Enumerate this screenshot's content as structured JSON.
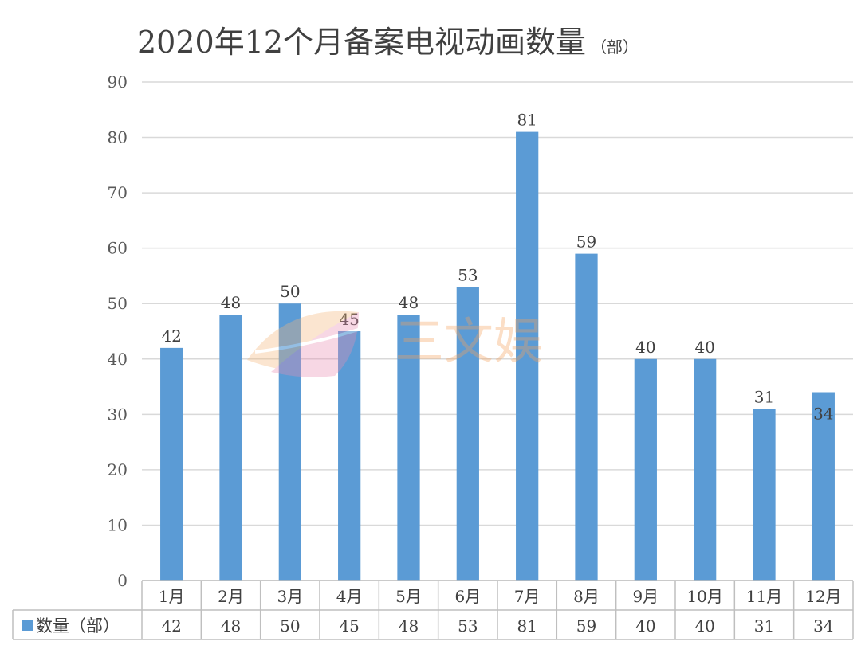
{
  "watermark_text": "三文娱",
  "chart_data": {
    "type": "bar",
    "title": "2020年12个月备案电视动画数量",
    "unit": "（部）",
    "categories": [
      "1月",
      "2月",
      "3月",
      "4月",
      "5月",
      "6月",
      "7月",
      "8月",
      "9月",
      "10月",
      "11月",
      "12月"
    ],
    "series": [
      {
        "name": "数量（部）",
        "values": [
          42,
          48,
          50,
          45,
          48,
          53,
          81,
          59,
          40,
          40,
          31,
          34
        ],
        "color": "#5b9bd5"
      }
    ],
    "ylim": [
      0,
      90
    ],
    "yticks": [
      0,
      10,
      20,
      30,
      40,
      50,
      60,
      70,
      80,
      90
    ],
    "grid": true,
    "legend": "data-table-left",
    "data_table": true
  }
}
